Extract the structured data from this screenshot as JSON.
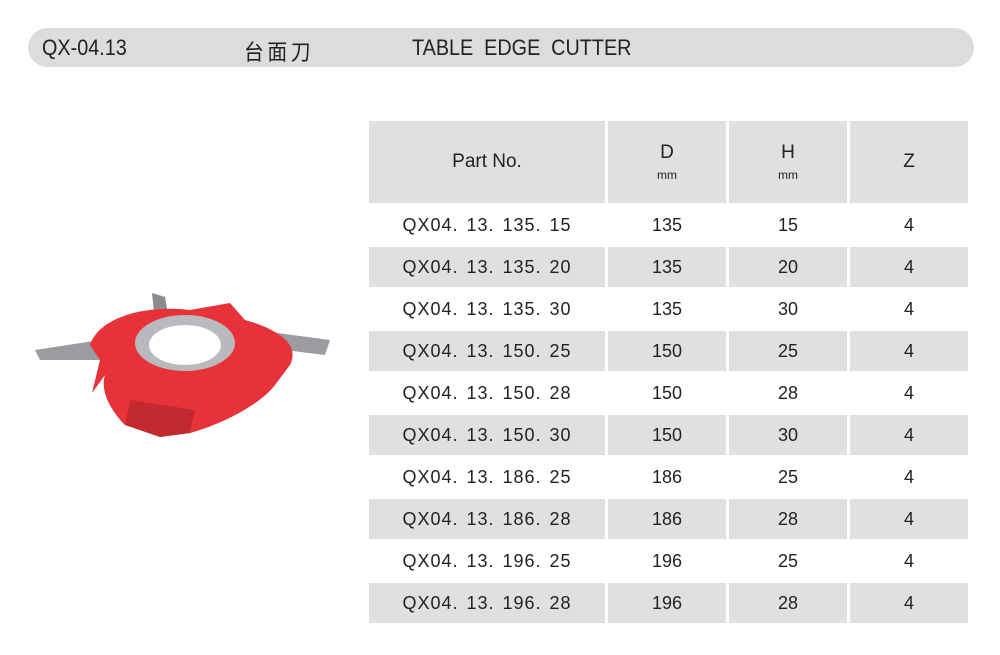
{
  "header": {
    "code": "QX-04.13",
    "title_cn": "台面刀",
    "title_en": "TABLE EDGE  CUTTER"
  },
  "table": {
    "columns": [
      {
        "label": "Part No.",
        "unit": ""
      },
      {
        "label": "D",
        "unit": "mm"
      },
      {
        "label": "H",
        "unit": "mm"
      },
      {
        "label": "Z",
        "unit": ""
      }
    ],
    "rows": [
      [
        "QX04. 13. 135. 15",
        "135",
        "15",
        "4"
      ],
      [
        "QX04. 13. 135. 20",
        "135",
        "20",
        "4"
      ],
      [
        "QX04. 13. 135. 30",
        "135",
        "30",
        "4"
      ],
      [
        "QX04. 13. 150. 25",
        "150",
        "25",
        "4"
      ],
      [
        "QX04. 13. 150. 28",
        "150",
        "28",
        "4"
      ],
      [
        "QX04. 13. 150. 30",
        "150",
        "30",
        "4"
      ],
      [
        "QX04. 13. 186. 25",
        "186",
        "25",
        "4"
      ],
      [
        "QX04. 13. 186. 28",
        "186",
        "28",
        "4"
      ],
      [
        "QX04. 13. 196. 25",
        "196",
        "25",
        "4"
      ],
      [
        "QX04. 13. 196. 28",
        "196",
        "28",
        "4"
      ]
    ]
  },
  "colors": {
    "cutter_body": "#e8323a",
    "header_bg": "#dcdcdc",
    "row_alt": "#e0e0e0"
  }
}
